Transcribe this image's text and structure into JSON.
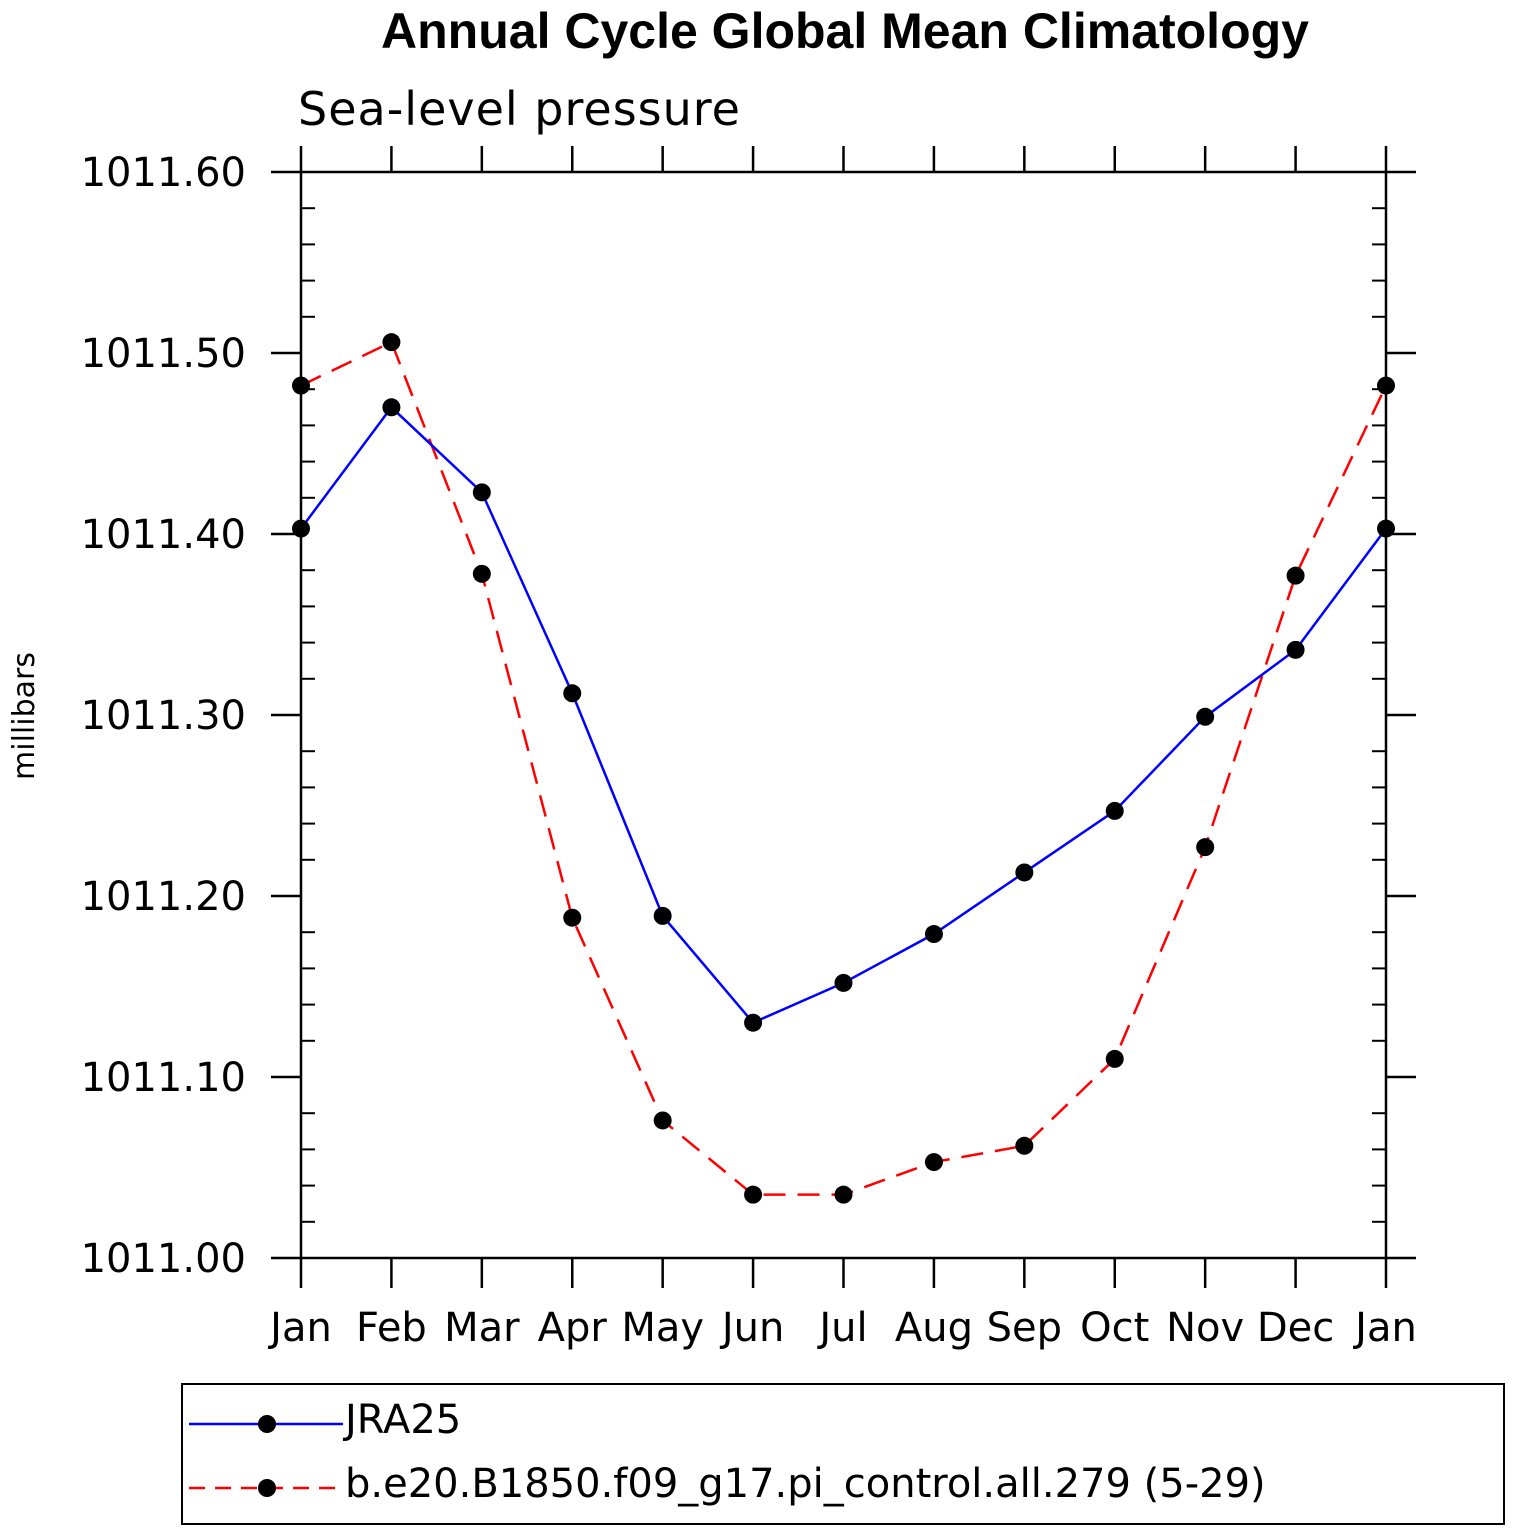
{
  "chart_data": {
    "type": "line",
    "title": "Annual Cycle Global Mean Climatology",
    "subtitle": "Sea-level pressure",
    "xlabel": "",
    "ylabel": "millibars",
    "categories": [
      "Jan",
      "Feb",
      "Mar",
      "Apr",
      "May",
      "Jun",
      "Jul",
      "Aug",
      "Sep",
      "Oct",
      "Nov",
      "Dec",
      "Jan"
    ],
    "ylim": [
      1011.0,
      1011.6
    ],
    "yticks": [
      "1011.00",
      "1011.10",
      "1011.20",
      "1011.30",
      "1011.40",
      "1011.50",
      "1011.60"
    ],
    "ytick_values": [
      1011.0,
      1011.1,
      1011.2,
      1011.3,
      1011.4,
      1011.5,
      1011.6
    ],
    "grid": false,
    "legend_position": "bottom",
    "series": [
      {
        "name": "JRA25",
        "color": "#0000ff",
        "style": "solid",
        "values": [
          1011.403,
          1011.47,
          1011.423,
          1011.312,
          1011.189,
          1011.13,
          1011.152,
          1011.179,
          1011.213,
          1011.247,
          1011.299,
          1011.336,
          1011.403
        ]
      },
      {
        "name": "b.e20.B1850.f09_g17.pi_control.all.279 (5-29)",
        "color": "#ff0000",
        "style": "dashed",
        "values": [
          1011.482,
          1011.506,
          1011.378,
          1011.188,
          1011.076,
          1011.035,
          1011.035,
          1011.053,
          1011.062,
          1011.11,
          1011.227,
          1011.377,
          1011.482
        ]
      }
    ]
  }
}
